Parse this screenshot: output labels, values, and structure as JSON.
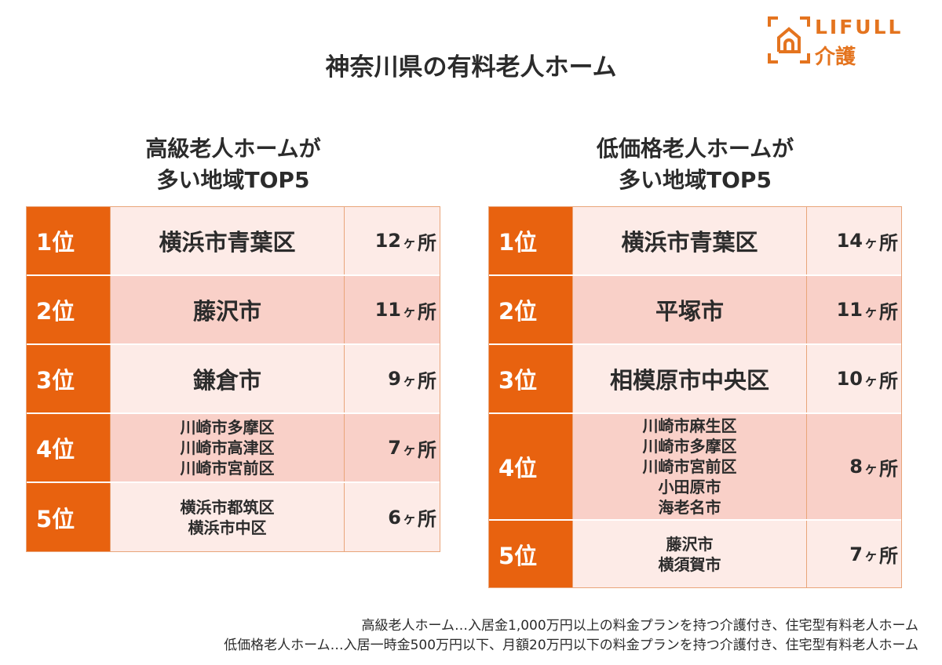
{
  "title": "神奈川県の有料老人ホーム",
  "logo": {
    "line1": "LIFULL",
    "line2": "介護",
    "color": "#e4741f"
  },
  "colors": {
    "rank_bg": "#e8620f",
    "row_light": "#fdebe7",
    "row_dark": "#f9d0c8"
  },
  "left": {
    "heading": [
      "高級老人ホームが",
      "多い地域TOP5"
    ],
    "rows": [
      {
        "rank": "1位",
        "areas": [
          "横浜市青葉区"
        ],
        "num": "12",
        "unit": "ヶ",
        "suffix": "所"
      },
      {
        "rank": "2位",
        "areas": [
          "藤沢市"
        ],
        "num": "11",
        "unit": "ヶ",
        "suffix": "所"
      },
      {
        "rank": "3位",
        "areas": [
          "鎌倉市"
        ],
        "num": "9",
        "unit": "ヶ",
        "suffix": "所"
      },
      {
        "rank": "4位",
        "areas": [
          "川崎市多摩区",
          "川崎市高津区",
          "川崎市宮前区"
        ],
        "num": "7",
        "unit": "ヶ",
        "suffix": "所"
      },
      {
        "rank": "5位",
        "areas": [
          "横浜市都筑区",
          "横浜市中区"
        ],
        "num": "6",
        "unit": "ヶ",
        "suffix": "所"
      }
    ]
  },
  "right": {
    "heading": [
      "低価格老人ホームが",
      "多い地域TOP5"
    ],
    "rows": [
      {
        "rank": "1位",
        "areas": [
          "横浜市青葉区"
        ],
        "num": "14",
        "unit": "ヶ",
        "suffix": "所"
      },
      {
        "rank": "2位",
        "areas": [
          "平塚市"
        ],
        "num": "11",
        "unit": "ヶ",
        "suffix": "所"
      },
      {
        "rank": "3位",
        "areas": [
          "相模原市中央区"
        ],
        "num": "10",
        "unit": "ヶ",
        "suffix": "所"
      },
      {
        "rank": "4位",
        "areas": [
          "川崎市麻生区",
          "川崎市多摩区",
          "川崎市宮前区",
          "小田原市",
          "海老名市"
        ],
        "num": "8",
        "unit": "ヶ",
        "suffix": "所"
      },
      {
        "rank": "5位",
        "areas": [
          "藤沢市",
          "横須賀市"
        ],
        "num": "7",
        "unit": "ヶ",
        "suffix": "所"
      }
    ]
  },
  "notes": [
    "高級老人ホーム…入居金1,000万円以上の料金プランを持つ介護付き、住宅型有料老人ホーム",
    "低価格老人ホーム…入居一時金500万円以下、月額20万円以下の料金プランを持つ介護付き、住宅型有料老人ホーム"
  ]
}
